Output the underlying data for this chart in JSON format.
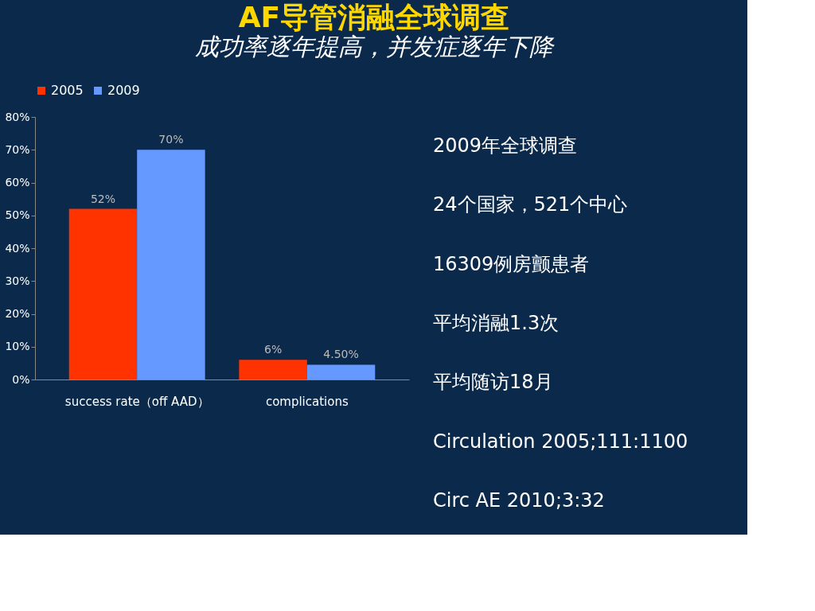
{
  "chart_data": {
    "type": "bar",
    "title": "AF导管消融全球调查",
    "subtitle": "成功率逐年提高，并发症逐年下降",
    "categories": [
      "success rate（off AAD）",
      "complications"
    ],
    "series": [
      {
        "name": "2005",
        "color": "#ff3300",
        "values": [
          52,
          6
        ],
        "value_labels": [
          "52%",
          "6%"
        ]
      },
      {
        "name": "2009",
        "color": "#6699ff",
        "values": [
          70,
          4.5
        ],
        "value_labels": [
          "70%",
          "4.50%"
        ]
      }
    ],
    "ylim": [
      0,
      80
    ],
    "yticks": [
      {
        "value": 0,
        "label": "0%"
      },
      {
        "value": 10,
        "label": "10%"
      },
      {
        "value": 20,
        "label": "20%"
      },
      {
        "value": 30,
        "label": "30%"
      },
      {
        "value": 40,
        "label": "40%"
      },
      {
        "value": 50,
        "label": "50%"
      },
      {
        "value": 60,
        "label": "60%"
      },
      {
        "value": 70,
        "label": "70%"
      },
      {
        "value": 80,
        "label": "80%"
      }
    ],
    "grid": false,
    "legend": "top",
    "annotations": [
      "2009年全球调查",
      "24个国家，521个中心",
      "16309例房颤患者",
      "平均消融1.3次",
      "平均随访18月",
      "Circulation 2005;111:1100",
      "Circ AE 2010;3:32"
    ]
  }
}
